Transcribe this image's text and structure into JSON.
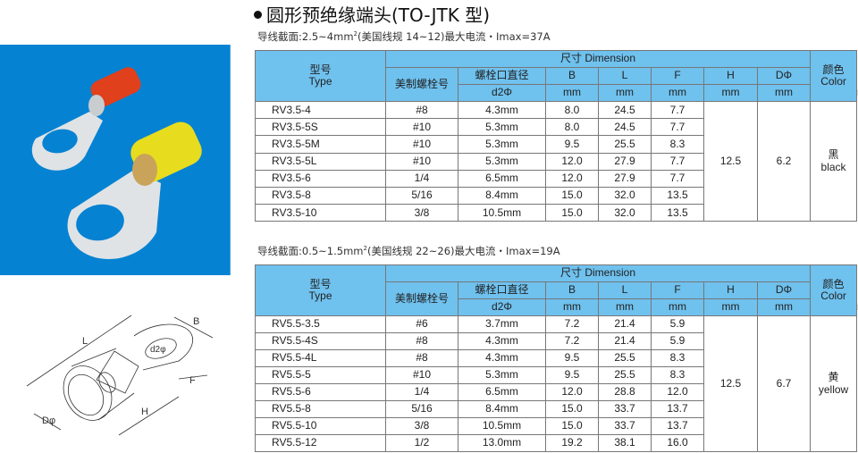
{
  "title": "圆形预绝缘端头(TO-JTK 型)",
  "colors": {
    "header_bg": "#6fc1ee",
    "photo_bg": "#0682d2"
  },
  "headers": {
    "type_cn": "型号",
    "type_en": "Type",
    "dimension": "尺寸 Dimension",
    "us_screw": "美制螺栓号",
    "screw_dia": "螺栓口直径",
    "d2": "d2Φ",
    "B": "B",
    "L": "L",
    "F": "F",
    "H": "H",
    "D": "DΦ",
    "unit": "mm",
    "color_cn": "颜色",
    "color_en": "Color"
  },
  "drawing_labels": {
    "L": "L",
    "B": "B",
    "d2": "d2φ",
    "F": "F",
    "H": "H",
    "D": "Dφ"
  },
  "tables": [
    {
      "subtitle_pre": "导线截面:2.5~4mm",
      "subtitle_sup": "2",
      "subtitle_post": "(美国线规 14~12)最大电流・Imax=37A",
      "H": "12.5",
      "D": "6.2",
      "color_cn": "黑",
      "color_en": "black",
      "rows": [
        [
          "RV3.5-4",
          "#8",
          "4.3mm",
          "8.0",
          "24.5",
          "7.7"
        ],
        [
          "RV3.5-5S",
          "#10",
          "5.3mm",
          "8.0",
          "24.5",
          "7.7"
        ],
        [
          "RV3.5-5M",
          "#10",
          "5.3mm",
          "9.5",
          "25.5",
          "8.3"
        ],
        [
          "RV3.5-5L",
          "#10",
          "5.3mm",
          "12.0",
          "27.9",
          "7.7"
        ],
        [
          "RV3.5-6",
          "1/4",
          "6.5mm",
          "12.0",
          "27.9",
          "7.7"
        ],
        [
          "RV3.5-8",
          "5/16",
          "8.4mm",
          "15.0",
          "32.0",
          "13.5"
        ],
        [
          "RV3.5-10",
          "3/8",
          "10.5mm",
          "15.0",
          "32.0",
          "13.5"
        ]
      ]
    },
    {
      "subtitle_pre": "导线截面:0.5~1.5mm",
      "subtitle_sup": "2",
      "subtitle_post": "(美国线规 22~26)最大电流・Imax=19A",
      "H": "12.5",
      "D": "6.7",
      "color_cn": "黄",
      "color_en": "yellow",
      "rows": [
        [
          "RV5.5-3.5",
          "#6",
          "3.7mm",
          "7.2",
          "21.4",
          "5.9"
        ],
        [
          "RV5.5-4S",
          "#8",
          "4.3mm",
          "7.2",
          "21.4",
          "5.9"
        ],
        [
          "RV5.5-4L",
          "#8",
          "4.3mm",
          "9.5",
          "25.5",
          "8.3"
        ],
        [
          "RV5.5-5",
          "#10",
          "5.3mm",
          "9.5",
          "25.5",
          "8.3"
        ],
        [
          "RV5.5-6",
          "1/4",
          "6.5mm",
          "12.0",
          "28.8",
          "12.0"
        ],
        [
          "RV5.5-8",
          "5/16",
          "8.4mm",
          "15.0",
          "33.7",
          "13.7"
        ],
        [
          "RV5.5-10",
          "3/8",
          "10.5mm",
          "15.0",
          "33.7",
          "13.7"
        ],
        [
          "RV5.5-12",
          "1/2",
          "13.0mm",
          "19.2",
          "38.1",
          "16.0"
        ]
      ]
    }
  ]
}
